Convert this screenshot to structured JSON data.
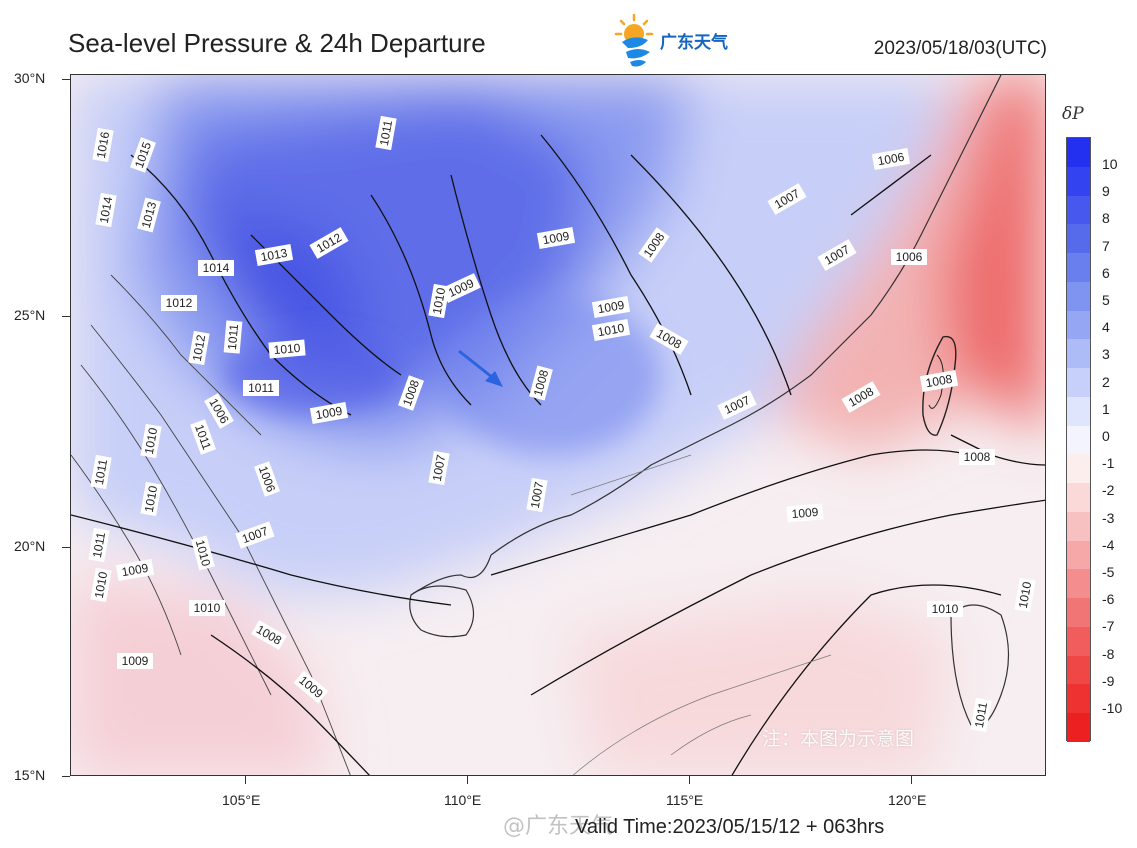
{
  "header": {
    "title": "Sea-level Pressure & 24h Departure",
    "datetime": "2023/05/18/03(UTC)",
    "logo_text": "广东天气"
  },
  "axes": {
    "lat_labels": [
      "30°N",
      "25°N",
      "20°N",
      "15°N"
    ],
    "lon_labels": [
      "105°E",
      "110°E",
      "115°E",
      "120°E"
    ]
  },
  "colorbar": {
    "symbol": "δP",
    "labels": [
      "10",
      "9",
      "8",
      "7",
      "6",
      "5",
      "4",
      "3",
      "2",
      "1",
      "0",
      "-1",
      "-2",
      "-3",
      "-4",
      "-5",
      "-6",
      "-7",
      "-8",
      "-9",
      "-10"
    ],
    "colors": [
      "#2430f0",
      "#3443f0",
      "#4658ee",
      "#566aec",
      "#6a7fee",
      "#7f93f1",
      "#95a6f4",
      "#adbbf7",
      "#c6d0fa",
      "#dfe5fc",
      "#f3f4fe",
      "#fdeeee",
      "#fbd9d9",
      "#f8c1c1",
      "#f6a8a8",
      "#f48e8e",
      "#f27575",
      "#f15d5d",
      "#ef4646",
      "#ee3232",
      "#ec2020"
    ]
  },
  "isobar_labels": [
    "1016",
    "1015",
    "1014",
    "1013",
    "1014",
    "1013",
    "1012",
    "1012",
    "1011",
    "1012",
    "1011",
    "1010",
    "1011",
    "1010",
    "1009",
    "1011",
    "1010",
    "1009",
    "1009",
    "1010",
    "1011",
    "1008",
    "1008",
    "1007",
    "1009",
    "1008",
    "1008",
    "1007",
    "1009",
    "1006",
    "1007",
    "1007",
    "1006",
    "1006",
    "1008",
    "1007",
    "1008",
    "1011",
    "1010",
    "1010",
    "1010",
    "1009",
    "1006",
    "1007",
    "1010",
    "1008",
    "1009",
    "1010",
    "1009",
    "1010",
    "1011",
    "1010",
    "1008"
  ],
  "footer": {
    "valid_time": "Valid Time:2023/05/15/12 + 063hrs",
    "watermark": "@广东天气",
    "note": "注：本图为示意图"
  }
}
